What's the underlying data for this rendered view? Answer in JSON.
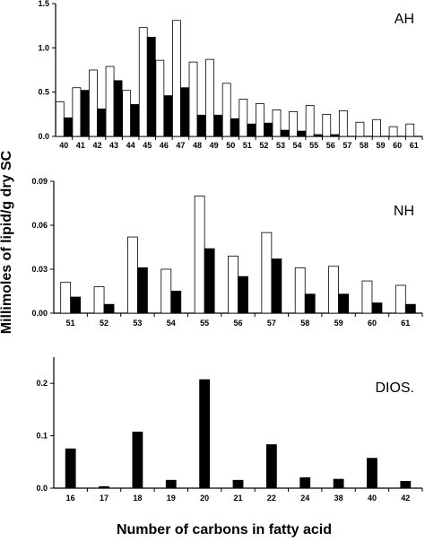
{
  "ylabel": "Millimoles of lipid/g dry SC",
  "xlabel": "Number of carbons in fatty acid",
  "chart_data": [
    {
      "type": "bar",
      "panel_label": "AH",
      "categories": [
        "40",
        "41",
        "42",
        "43",
        "44",
        "45",
        "46",
        "47",
        "48",
        "49",
        "50",
        "51",
        "52",
        "53",
        "54",
        "55",
        "56",
        "57",
        "58",
        "59",
        "60",
        "61"
      ],
      "ylim": [
        0,
        1.5
      ],
      "yticks": [
        "0.0",
        "0.5",
        "1.0",
        "1.5"
      ],
      "series": [
        {
          "style": "open",
          "color": "#ffffff",
          "values": [
            0.39,
            0.55,
            0.75,
            0.79,
            0.52,
            1.23,
            0.86,
            1.31,
            0.84,
            0.87,
            0.6,
            0.42,
            0.37,
            0.3,
            0.28,
            0.35,
            0.25,
            0.29,
            0.16,
            0.19,
            0.11,
            0.14
          ]
        },
        {
          "style": "solid",
          "color": "#000000",
          "values": [
            0.21,
            0.52,
            0.31,
            0.63,
            0.36,
            1.12,
            0.46,
            0.55,
            0.24,
            0.24,
            0.2,
            0.14,
            0.15,
            0.07,
            0.06,
            0.02,
            0.02,
            0,
            0,
            0,
            0,
            0
          ]
        }
      ]
    },
    {
      "type": "bar",
      "panel_label": "NH",
      "categories": [
        "51",
        "52",
        "53",
        "54",
        "55",
        "56",
        "57",
        "58",
        "59",
        "60",
        "61"
      ],
      "ylim": [
        0,
        0.09
      ],
      "yticks": [
        "0.00",
        "0.03",
        "0.06",
        "0.09"
      ],
      "series": [
        {
          "style": "open",
          "color": "#ffffff",
          "values": [
            0.021,
            0.018,
            0.052,
            0.03,
            0.08,
            0.039,
            0.055,
            0.031,
            0.032,
            0.022,
            0.019
          ]
        },
        {
          "style": "solid",
          "color": "#000000",
          "values": [
            0.011,
            0.006,
            0.031,
            0.015,
            0.044,
            0.025,
            0.037,
            0.013,
            0.013,
            0.007,
            0.006
          ]
        }
      ]
    },
    {
      "type": "bar",
      "panel_label": "DIOS.",
      "categories": [
        "16",
        "17",
        "18",
        "19",
        "20",
        "21",
        "22",
        "24",
        "38",
        "40",
        "42"
      ],
      "ylim": [
        0,
        0.25
      ],
      "yticks": [
        "0.0",
        "0.1",
        "0.2"
      ],
      "series": [
        {
          "style": "solid",
          "color": "#000000",
          "values": [
            0.075,
            0.003,
            0.107,
            0.015,
            0.207,
            0.015,
            0.083,
            0.02,
            0.017,
            0.057,
            0.013
          ]
        }
      ]
    }
  ]
}
